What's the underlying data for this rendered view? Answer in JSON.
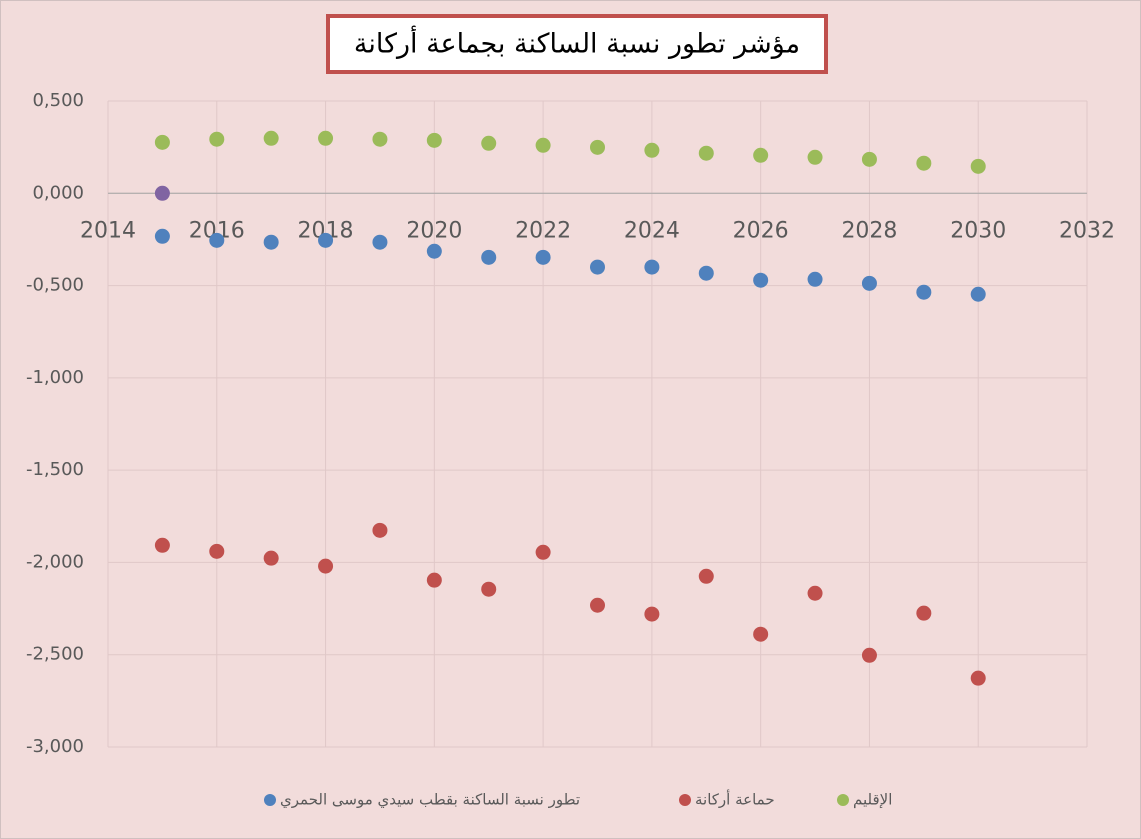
{
  "chart_data": {
    "type": "scatter",
    "title": "مؤشر تطور نسبة الساكنة بجماعة أركانة",
    "x": [
      2015,
      2016,
      2017,
      2018,
      2019,
      2020,
      2021,
      2022,
      2023,
      2024,
      2025,
      2026,
      2027,
      2028,
      2029,
      2030
    ],
    "series": [
      {
        "name": "تطور نسبة الساكنة بقطب سيدي موسى الحمري",
        "color": "#4f81bd",
        "values": [
          -0.233,
          -0.255,
          -0.265,
          -0.255,
          -0.265,
          -0.314,
          -0.347,
          -0.347,
          -0.4,
          -0.4,
          -0.433,
          -0.471,
          -0.466,
          -0.488,
          -0.536,
          -0.547
        ]
      },
      {
        "name": "حماعة أركانة",
        "color": "#c0504d",
        "values": [
          -1.907,
          -1.94,
          -1.977,
          -2.02,
          -1.826,
          -2.096,
          -2.145,
          -1.945,
          -2.232,
          -2.28,
          -2.075,
          -2.389,
          -2.167,
          -2.503,
          -2.275,
          -2.627
        ]
      },
      {
        "name": "الإقليم",
        "color": "#9bbb59",
        "values": [
          0.276,
          0.293,
          0.298,
          0.298,
          0.293,
          0.287,
          0.271,
          0.26,
          0.249,
          0.233,
          0.217,
          0.206,
          0.195,
          0.184,
          0.163,
          0.146
        ]
      },
      {
        "color": "#8064a2",
        "x": [
          2015
        ],
        "values": [
          0
        ]
      }
    ],
    "xlim": [
      2014,
      2032
    ],
    "xticks": [
      2014,
      2016,
      2018,
      2020,
      2022,
      2024,
      2026,
      2028,
      2030,
      2032
    ],
    "ylim": [
      -3,
      0.5
    ],
    "yticks": [
      {
        "value": -3,
        "label": "-3,000"
      },
      {
        "value": -2.5,
        "label": "-2,500"
      },
      {
        "value": -2,
        "label": "-2,000"
      },
      {
        "value": -1.5,
        "label": "-1,500"
      },
      {
        "value": -1,
        "label": "-1,000"
      },
      {
        "value": -0.5,
        "label": "-0,500"
      },
      {
        "value": 0,
        "label": "0,000"
      },
      {
        "value": 0.5,
        "label": "0,500"
      }
    ],
    "grid": true,
    "legend": "bottom"
  }
}
